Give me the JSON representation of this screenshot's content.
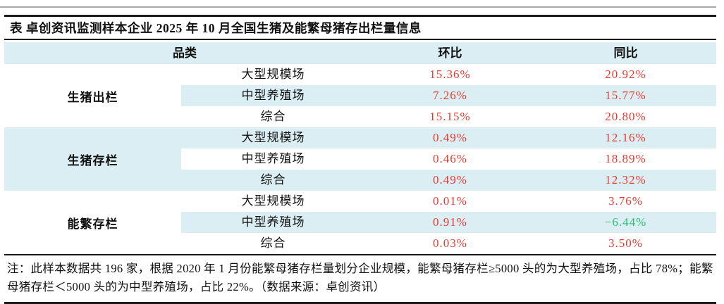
{
  "title": "表 卓创资讯监测样本企业 2025 年 10 月全国生猪及能繁母猪存出栏量信息",
  "table": {
    "headers": {
      "category": "品类",
      "mom": "环比",
      "yoy": "同比"
    },
    "groups": [
      {
        "name": "生猪出栏",
        "rows": [
          {
            "sub": "大型规模场",
            "mom": "15.36%",
            "yoy": "20.92%"
          },
          {
            "sub": "中型养殖场",
            "mom": "7.26%",
            "yoy": "15.77%"
          },
          {
            "sub": "综合",
            "mom": "15.15%",
            "yoy": "20.80%"
          }
        ]
      },
      {
        "name": "生猪存栏",
        "rows": [
          {
            "sub": "大型规模场",
            "mom": "0.49%",
            "yoy": "12.16%"
          },
          {
            "sub": "中型养殖场",
            "mom": "0.46%",
            "yoy": "18.89%"
          },
          {
            "sub": "综合",
            "mom": "0.49%",
            "yoy": "12.32%"
          }
        ]
      },
      {
        "name": "能繁存栏",
        "rows": [
          {
            "sub": "大型规模场",
            "mom": "0.01%",
            "yoy": "3.76%"
          },
          {
            "sub": "中型养殖场",
            "mom": "0.91%",
            "yoy": "−6.44%"
          },
          {
            "sub": "综合",
            "mom": "0.03%",
            "yoy": "3.50%"
          }
        ]
      }
    ]
  },
  "note": "注：此样本数据共 196 家，根据 2020 年 1 月份能繁母猪存栏量划分企业规模，能繁母猪存栏≥5000 头的为大型养殖场，占比 78%；能繁母猪存栏＜5000 头的为中型养殖场，占比 22%。（数据来源：卓创资讯）",
  "colors": {
    "header_bg": "#daeef3",
    "positive": "#e8392e",
    "negative": "#2dbd72"
  }
}
